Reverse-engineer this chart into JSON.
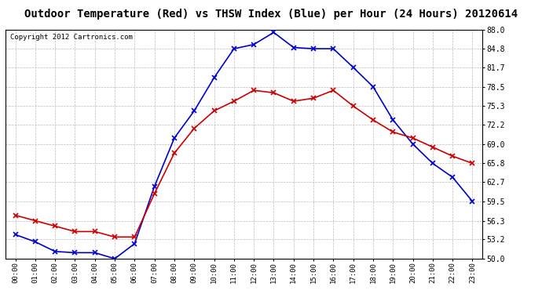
{
  "title": "Outdoor Temperature (Red) vs THSW Index (Blue) per Hour (24 Hours) 20120614",
  "copyright": "Copyright 2012 Cartronics.com",
  "hours": [
    "00:00",
    "01:00",
    "02:00",
    "03:00",
    "04:00",
    "05:00",
    "06:00",
    "07:00",
    "08:00",
    "09:00",
    "10:00",
    "11:00",
    "12:00",
    "13:00",
    "14:00",
    "15:00",
    "16:00",
    "17:00",
    "18:00",
    "19:00",
    "20:00",
    "21:00",
    "22:00",
    "23:00"
  ],
  "red_temp": [
    57.2,
    56.3,
    55.4,
    54.5,
    54.5,
    53.6,
    53.6,
    60.8,
    67.5,
    71.6,
    74.5,
    76.1,
    77.9,
    77.5,
    76.1,
    76.6,
    77.9,
    75.3,
    73.0,
    71.0,
    70.0,
    68.5,
    67.0,
    65.8
  ],
  "blue_thsw": [
    54.0,
    52.8,
    51.2,
    51.0,
    51.0,
    50.0,
    52.5,
    62.0,
    70.0,
    74.5,
    80.0,
    84.8,
    85.5,
    87.5,
    85.0,
    84.8,
    84.8,
    81.7,
    78.5,
    73.0,
    69.0,
    65.8,
    63.5,
    59.5
  ],
  "ylim": [
    50.0,
    88.0
  ],
  "yticks": [
    50.0,
    53.2,
    56.3,
    59.5,
    62.7,
    65.8,
    69.0,
    72.2,
    75.3,
    78.5,
    81.7,
    84.8,
    88.0
  ],
  "bg_color": "#ffffff",
  "plot_bg_color": "#ffffff",
  "grid_color": "#bbbbbb",
  "red_color": "#cc0000",
  "blue_color": "#0000cc",
  "title_fontsize": 10,
  "copyright_fontsize": 6.5
}
